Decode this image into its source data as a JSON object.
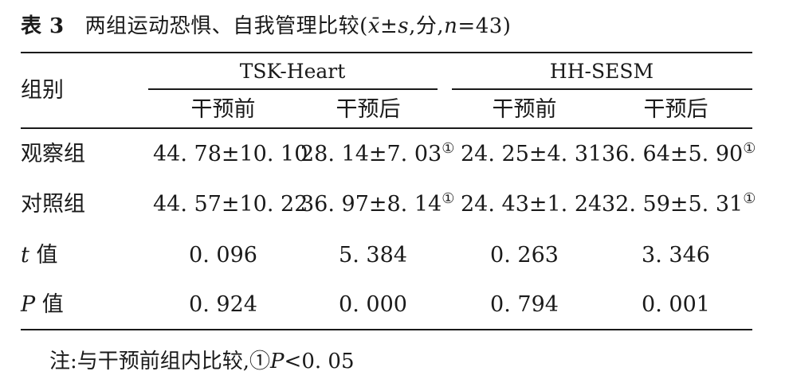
{
  "title": {
    "number": "表 3",
    "text": "两组运动恐惧、自我管理比较",
    "paren_open": "(",
    "mean_sym": "x̄",
    "pm": "±",
    "s_sym": "s",
    "unit_part": ",分,",
    "n_sym": "n",
    "n_value": "=43",
    "paren_close": ")"
  },
  "table": {
    "row_header": "组别",
    "groups": [
      "TSK-Heart",
      "HH-SESM"
    ],
    "subheaders": [
      "干预前",
      "干预后",
      "干预前",
      "干预后"
    ],
    "rows": [
      {
        "label": "观察组",
        "cells": [
          {
            "value": "44. 78±10. 10",
            "mark": ""
          },
          {
            "value": "28. 14±7. 03",
            "mark": "①"
          },
          {
            "value": "24. 25±4. 31",
            "mark": ""
          },
          {
            "value": "36. 64±5. 90",
            "mark": "①"
          }
        ]
      },
      {
        "label": "对照组",
        "cells": [
          {
            "value": "44. 57±10. 22",
            "mark": ""
          },
          {
            "value": "36. 97±8. 14",
            "mark": "①"
          },
          {
            "value": "24. 43±1. 24",
            "mark": ""
          },
          {
            "value": "32. 59±5. 31",
            "mark": "①"
          }
        ]
      },
      {
        "label_sym": "t",
        "label_rest": " 值",
        "cells": [
          {
            "value": "0. 096",
            "mark": ""
          },
          {
            "value": "5. 384",
            "mark": ""
          },
          {
            "value": "0. 263",
            "mark": ""
          },
          {
            "value": "3. 346",
            "mark": ""
          }
        ]
      },
      {
        "label_sym": "P",
        "label_rest": " 值",
        "cells": [
          {
            "value": "0. 924",
            "mark": ""
          },
          {
            "value": "0. 000",
            "mark": ""
          },
          {
            "value": "0. 794",
            "mark": ""
          },
          {
            "value": "0. 001",
            "mark": ""
          }
        ]
      }
    ]
  },
  "note": {
    "prefix": "注:与干预前组内比较,",
    "mark": "①",
    "sym": "P",
    "rest": "<0. 05"
  }
}
